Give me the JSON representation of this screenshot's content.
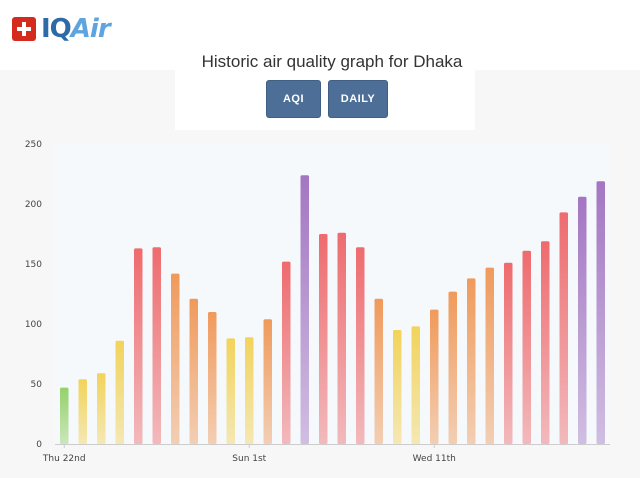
{
  "brand": {
    "name_prefix": "IQ",
    "name_suffix": "Air",
    "flag_icon": "swiss-flag-icon"
  },
  "page": {
    "title": "Historic air quality graph for Dhaka"
  },
  "buttons": {
    "aqi_label": "AQI",
    "daily_label": "DAILY",
    "color": "#4d6f97"
  },
  "chart_data": {
    "type": "bar",
    "title": "",
    "xlabel": "",
    "ylabel": "",
    "ylim": [
      0,
      250
    ],
    "yticks": [
      0,
      50,
      100,
      150,
      200,
      250
    ],
    "x_tick_labels": [
      {
        "label": "Thu 22nd",
        "index": 0
      },
      {
        "label": "Sun 1st",
        "index": 10
      },
      {
        "label": "Wed 11th",
        "index": 20
      }
    ],
    "grid": false,
    "values": [
      47,
      54,
      59,
      86,
      163,
      164,
      142,
      121,
      110,
      88,
      89,
      104,
      152,
      224,
      175,
      176,
      164,
      121,
      95,
      98,
      112,
      127,
      138,
      147,
      151,
      161,
      169,
      193,
      206,
      219
    ],
    "color_scale": [
      {
        "max": 50,
        "color": "#95d16a"
      },
      {
        "max": 100,
        "color": "#f2d35b"
      },
      {
        "max": 150,
        "color": "#f09a5b"
      },
      {
        "max": 200,
        "color": "#ee6b6e"
      },
      {
        "max": 300,
        "color": "#a376c2"
      }
    ]
  }
}
